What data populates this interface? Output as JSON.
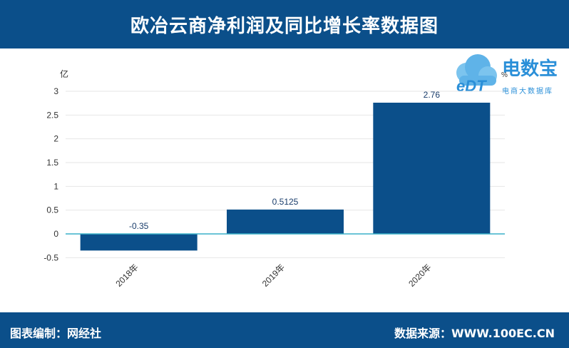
{
  "header": {
    "title": "欧冶云商净利润及同比增长率数据图"
  },
  "logo": {
    "brand": "电数宝",
    "sub": "电商大数据库"
  },
  "footer": {
    "left": "图表编制：网经社",
    "right": "数据来源：WWW.100EC.CN"
  },
  "colors": {
    "header_bg": "#0b4f8a",
    "bar": "#0b4f8a",
    "axis_zero": "#3ab0c8",
    "logo": "#2a8fd8"
  },
  "chart_data": {
    "type": "bar",
    "categories": [
      "2018年",
      "2019年",
      "2020年"
    ],
    "values": [
      -0.35,
      0.5125,
      2.76
    ],
    "value_labels": [
      "-0.35",
      "0.5125",
      "2.76"
    ],
    "y_unit_label": "亿",
    "y2_unit_label": "%",
    "ylim": [
      -0.5,
      3
    ],
    "yticks": [
      -0.5,
      0,
      0.5,
      1,
      1.5,
      2,
      2.5,
      3
    ],
    "ytick_labels": [
      "-0.5",
      "0",
      "0.5",
      "1",
      "1.5",
      "2",
      "2.5",
      "3"
    ],
    "grid": true
  }
}
